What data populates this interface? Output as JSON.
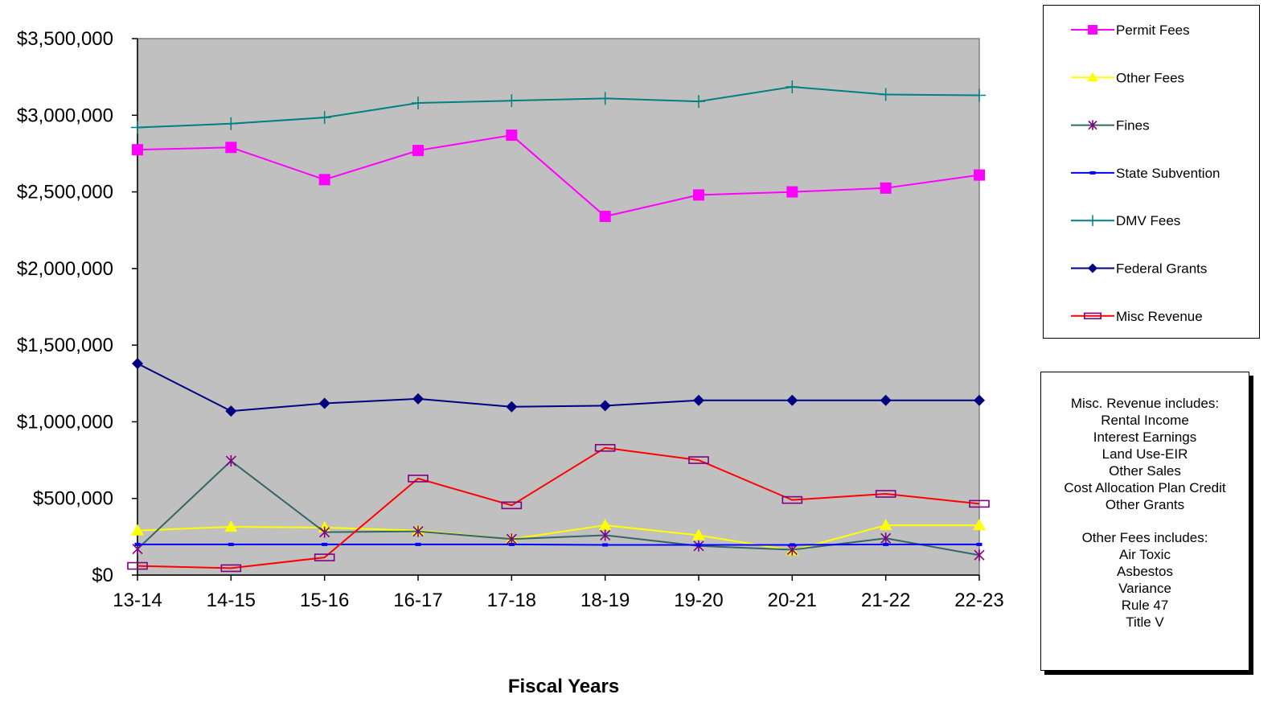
{
  "chart_data": {
    "type": "line",
    "title": "",
    "xlabel": "Fiscal Years",
    "ylabel": "",
    "categories": [
      "13-14",
      "14-15",
      "15-16",
      "16-17",
      "17-18",
      "18-19",
      "19-20",
      "20-21",
      "21-22",
      "22-23"
    ],
    "ylim": [
      0,
      3500000
    ],
    "yticks": [
      0,
      500000,
      1000000,
      1500000,
      2000000,
      2500000,
      3000000,
      3500000
    ],
    "ytick_labels": [
      "$0",
      "$500,000",
      "$1,000,000",
      "$1,500,000",
      "$2,000,000",
      "$2,500,000",
      "$3,000,000",
      "$3,500,000"
    ],
    "grid": false,
    "plot_background": "#c0c0c0",
    "legend_position": "right",
    "series": [
      {
        "name": "Permit Fees",
        "color": "#ff00ff",
        "marker": "square",
        "values": [
          2775000,
          2790000,
          2580000,
          2770000,
          2870000,
          2340000,
          2480000,
          2500000,
          2525000,
          2610000
        ]
      },
      {
        "name": "Other Fees",
        "color": "#ffff00",
        "marker": "triangle",
        "values": [
          290000,
          315000,
          310000,
          290000,
          235000,
          325000,
          260000,
          160000,
          325000,
          325000
        ]
      },
      {
        "name": "Fines",
        "color": "#336666",
        "marker": "asterisk",
        "marker_color": "#800080",
        "values": [
          170000,
          745000,
          280000,
          285000,
          235000,
          260000,
          190000,
          165000,
          240000,
          130000
        ]
      },
      {
        "name": "State Subvention",
        "color": "#0000ff",
        "marker": "dash",
        "values": [
          200000,
          200000,
          200000,
          200000,
          200000,
          197000,
          197000,
          197000,
          200000,
          200000
        ]
      },
      {
        "name": "DMV Fees",
        "color": "#008080",
        "marker": "plus",
        "values": [
          2920000,
          2945000,
          2985000,
          3080000,
          3095000,
          3110000,
          3090000,
          3185000,
          3135000,
          3130000
        ]
      },
      {
        "name": "Federal Grants",
        "color": "#000080",
        "marker": "diamond",
        "values": [
          1380000,
          1070000,
          1120000,
          1150000,
          1098000,
          1105000,
          1140000,
          1140000,
          1140000,
          1140000
        ]
      },
      {
        "name": "Misc Revenue",
        "color": "#ff0000",
        "marker": "open-rect",
        "marker_color": "#800080",
        "values": [
          60000,
          45000,
          115000,
          630000,
          455000,
          830000,
          750000,
          490000,
          530000,
          465000
        ]
      }
    ]
  },
  "note": {
    "misc_lines": [
      "Misc.  Revenue  includes:",
      "Rental Income",
      "Interest Earnings",
      "Land Use-EIR",
      "Other Sales",
      "Cost Allocation Plan Credit",
      "Other Grants"
    ],
    "other_lines": [
      "Other Fees includes:",
      "Air Toxic",
      "Asbestos",
      "Variance",
      "Rule 47",
      "Title V"
    ]
  }
}
